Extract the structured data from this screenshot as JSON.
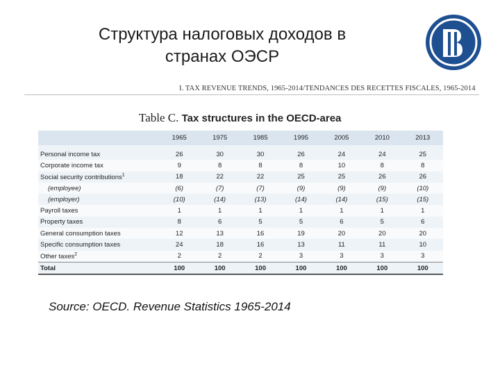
{
  "header": {
    "title_line1": "Структура налоговых доходов в",
    "title_line2": "странах ОЭСР",
    "section": "I. TAX REVENUE TRENDS, 1965-2014/TENDANCES DES RECETTES FISCALES, 1965-2014"
  },
  "table": {
    "prefix": "Table C.",
    "title": "Tax structures in the OECD-area",
    "columns": [
      "1965",
      "1975",
      "1985",
      "1995",
      "2005",
      "2010",
      "2013"
    ],
    "rows": [
      {
        "label": "Personal income tax",
        "values": [
          26,
          30,
          30,
          26,
          24,
          24,
          25
        ]
      },
      {
        "label": "Corporate income tax",
        "values": [
          9,
          8,
          8,
          8,
          10,
          8,
          8
        ]
      },
      {
        "label": "Social security contributions",
        "note": "1",
        "values": [
          18,
          22,
          22,
          25,
          25,
          26,
          26
        ]
      },
      {
        "label": "(employee)",
        "values": [
          "(6)",
          "(7)",
          "(7)",
          "(9)",
          "(9)",
          "(9)",
          "(10)"
        ]
      },
      {
        "label": "(employer)",
        "values": [
          "(10)",
          "(14)",
          "(13)",
          "(14)",
          "(14)",
          "(15)",
          "(15)"
        ]
      },
      {
        "label": "Payroll taxes",
        "values": [
          1,
          1,
          1,
          1,
          1,
          1,
          1
        ]
      },
      {
        "label": "Property taxes",
        "values": [
          8,
          6,
          5,
          5,
          6,
          5,
          6
        ]
      },
      {
        "label": "General consumption taxes",
        "values": [
          12,
          13,
          16,
          19,
          20,
          20,
          20
        ]
      },
      {
        "label": "Specific consumption taxes",
        "values": [
          24,
          18,
          16,
          13,
          11,
          11,
          10
        ]
      },
      {
        "label": "Other taxes",
        "note": "2",
        "values": [
          2,
          2,
          2,
          3,
          3,
          3,
          3
        ]
      },
      {
        "label": "Total",
        "values": [
          100,
          100,
          100,
          100,
          100,
          100,
          100
        ]
      }
    ]
  },
  "footer": {
    "source": "Source: OECD. Revenue Statistics 1965-2014"
  }
}
